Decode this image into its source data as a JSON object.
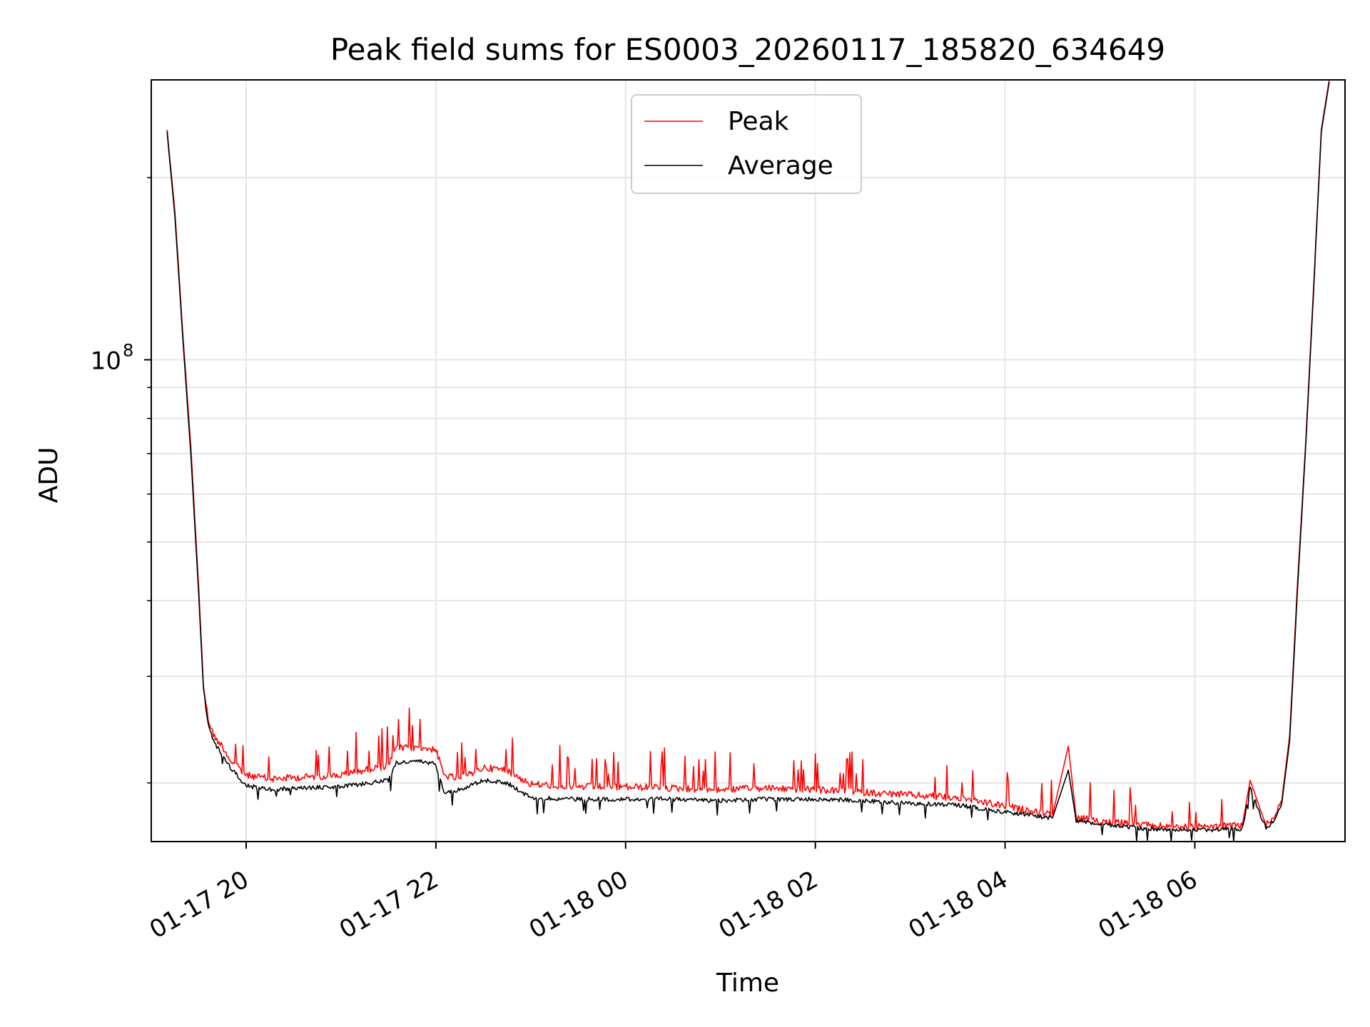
{
  "chart_data": {
    "type": "line",
    "title": "Peak field sums for ES0003_20260117_185820_634649",
    "xlabel": "Time",
    "ylabel": "ADU",
    "x_scale": "time",
    "y_scale": "log",
    "xlim": [
      "2026-01-17 19:00",
      "2026-01-18 07:35"
    ],
    "ylim": [
      16000000,
      290000000
    ],
    "x_ticks": [
      "01-17 20",
      "01-17 22",
      "01-18 00",
      "01-18 02",
      "01-18 04",
      "01-18 06"
    ],
    "y_ticks": [
      {
        "value": 100000000,
        "label_base": "10",
        "label_exp": "8"
      }
    ],
    "grid": true,
    "legend": {
      "position": "top-center",
      "entries": [
        "Peak",
        "Average"
      ]
    },
    "colors": {
      "Peak": "#ff0000",
      "Average": "#000000"
    },
    "series": [
      {
        "name": "Peak",
        "color": "#ff0000",
        "x": [
          "2026-01-17 19:10",
          "2026-01-17 19:15",
          "2026-01-17 19:20",
          "2026-01-17 19:25",
          "2026-01-17 19:30",
          "2026-01-17 19:33",
          "2026-01-17 19:36",
          "2026-01-17 19:40",
          "2026-01-17 19:45",
          "2026-01-17 19:50",
          "2026-01-17 20:00",
          "2026-01-17 20:15",
          "2026-01-17 20:30",
          "2026-01-17 21:00",
          "2026-01-17 21:30",
          "2026-01-17 21:35",
          "2026-01-17 21:50",
          "2026-01-17 22:00",
          "2026-01-17 22:05",
          "2026-01-17 22:15",
          "2026-01-17 22:30",
          "2026-01-17 22:45",
          "2026-01-17 23:00",
          "2026-01-17 23:30",
          "2026-01-18 00:00",
          "2026-01-18 00:30",
          "2026-01-18 01:00",
          "2026-01-18 01:30",
          "2026-01-18 02:00",
          "2026-01-18 02:30",
          "2026-01-18 03:00",
          "2026-01-18 03:30",
          "2026-01-18 04:00",
          "2026-01-18 04:30",
          "2026-01-18 04:40",
          "2026-01-18 04:45",
          "2026-01-18 05:00",
          "2026-01-18 05:30",
          "2026-01-18 06:00",
          "2026-01-18 06:30",
          "2026-01-18 06:35",
          "2026-01-18 06:45",
          "2026-01-18 06:50",
          "2026-01-18 06:55",
          "2026-01-18 07:00",
          "2026-01-18 07:05",
          "2026-01-18 07:10",
          "2026-01-18 07:15",
          "2026-01-18 07:20",
          "2026-01-18 07:25"
        ],
        "values": [
          240000000,
          175000000,
          110000000,
          72000000,
          42000000,
          29000000,
          25500000,
          23800000,
          23000000,
          21800000,
          20600000,
          20300000,
          20400000,
          20600000,
          21400000,
          22800000,
          22900000,
          22700000,
          20600000,
          20300000,
          21200000,
          21000000,
          19900000,
          19700000,
          19700000,
          19600000,
          19500000,
          19600000,
          19500000,
          19300000,
          19100000,
          18900000,
          18300000,
          17700000,
          23000000,
          17500000,
          17300000,
          17000000,
          16900000,
          17000000,
          20200000,
          17000000,
          17600000,
          18700000,
          24000000,
          43000000,
          72000000,
          130000000,
          240000000,
          290000000
        ]
      },
      {
        "name": "Average",
        "color": "#000000",
        "x": [
          "2026-01-17 19:10",
          "2026-01-17 19:15",
          "2026-01-17 19:20",
          "2026-01-17 19:25",
          "2026-01-17 19:30",
          "2026-01-17 19:33",
          "2026-01-17 19:36",
          "2026-01-17 19:40",
          "2026-01-17 19:45",
          "2026-01-17 19:50",
          "2026-01-17 20:00",
          "2026-01-17 20:15",
          "2026-01-17 20:30",
          "2026-01-17 21:00",
          "2026-01-17 21:30",
          "2026-01-17 21:35",
          "2026-01-17 21:50",
          "2026-01-17 22:00",
          "2026-01-17 22:05",
          "2026-01-17 22:15",
          "2026-01-17 22:30",
          "2026-01-17 22:45",
          "2026-01-17 23:00",
          "2026-01-17 23:30",
          "2026-01-18 00:00",
          "2026-01-18 00:30",
          "2026-01-18 01:00",
          "2026-01-18 01:30",
          "2026-01-18 02:00",
          "2026-01-18 02:30",
          "2026-01-18 03:00",
          "2026-01-18 03:30",
          "2026-01-18 04:00",
          "2026-01-18 04:30",
          "2026-01-18 04:40",
          "2026-01-18 04:45",
          "2026-01-18 05:00",
          "2026-01-18 05:30",
          "2026-01-18 06:00",
          "2026-01-18 06:30",
          "2026-01-18 06:35",
          "2026-01-18 06:45",
          "2026-01-18 06:50",
          "2026-01-18 06:55",
          "2026-01-18 07:00",
          "2026-01-18 07:05",
          "2026-01-18 07:10",
          "2026-01-18 07:15",
          "2026-01-18 07:20",
          "2026-01-18 07:25"
        ],
        "values": [
          238000000,
          172000000,
          108000000,
          70000000,
          41000000,
          28500000,
          25000000,
          23200000,
          22300000,
          21200000,
          19800000,
          19500000,
          19600000,
          19700000,
          20200000,
          21600000,
          21700000,
          21500000,
          19300000,
          19500000,
          20200000,
          20000000,
          18900000,
          18800000,
          18800000,
          18800000,
          18700000,
          18800000,
          18800000,
          18700000,
          18500000,
          18400000,
          17900000,
          17500000,
          21000000,
          17300000,
          17100000,
          16800000,
          16700000,
          16800000,
          19600000,
          16800000,
          17300000,
          18500000,
          23500000,
          42000000,
          71000000,
          128000000,
          238000000,
          288000000
        ]
      }
    ]
  }
}
